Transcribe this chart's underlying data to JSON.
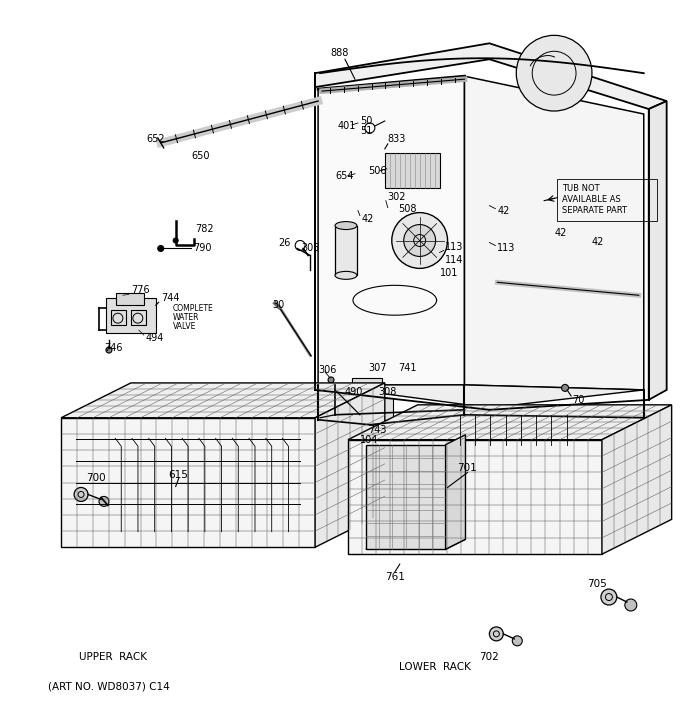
{
  "bg_color": "#ffffff",
  "fig_width": 6.8,
  "fig_height": 7.25,
  "dpi": 100,
  "art_no": "(ART NO. WD8037) C14",
  "upper_rack_label": "UPPER  RACK",
  "lower_rack_label": "LOWER  RACK"
}
